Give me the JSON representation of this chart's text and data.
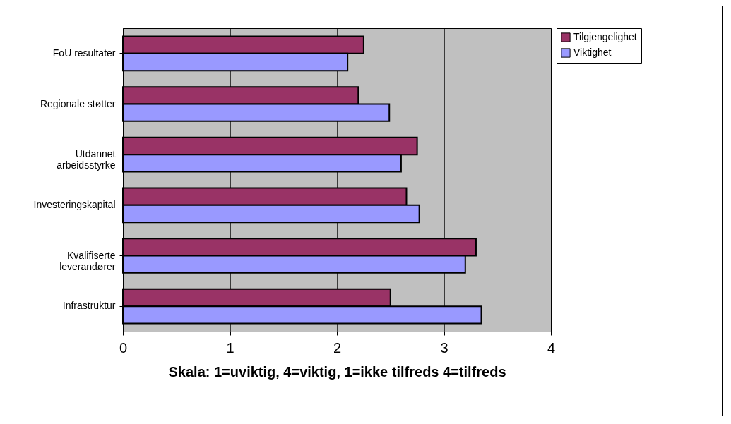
{
  "chart_data": {
    "type": "bar",
    "orientation": "horizontal",
    "xlabel": "Skala:  1=uviktig, 4=viktig,  1=ikke tilfreds 4=tilfreds",
    "categories": [
      "FoU resultater",
      "Regionale støtter",
      "Utdannet\narbeidsstyrke",
      "Investeringskapital",
      "Kvalifiserte\nleverandører",
      "Infrastruktur"
    ],
    "series": [
      {
        "name": "Tilgjengelighet",
        "color": "#993366",
        "values": [
          2.25,
          2.2,
          2.75,
          2.65,
          3.3,
          2.5
        ]
      },
      {
        "name": "Viktighet",
        "color": "#9999ff",
        "values": [
          2.1,
          2.49,
          2.6,
          2.77,
          3.2,
          3.35
        ]
      }
    ],
    "xlim": [
      0,
      4
    ],
    "xticks": [
      0,
      1,
      2,
      3,
      4
    ],
    "grid": "x",
    "legend": "right"
  }
}
